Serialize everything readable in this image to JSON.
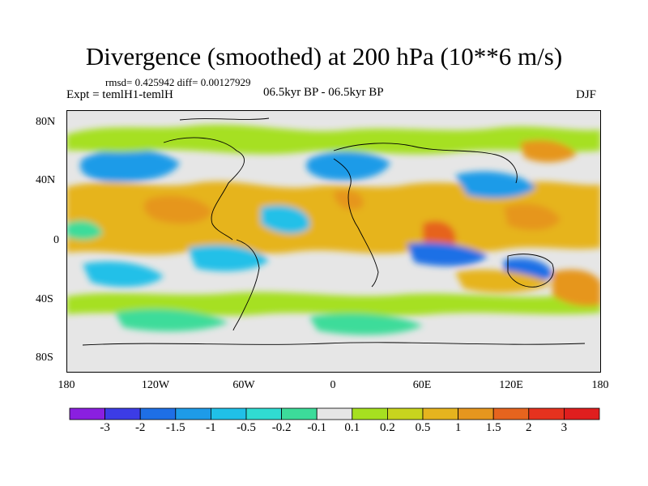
{
  "title": "Divergence (smoothed) at 200 hPa (10**6 m/s)",
  "stats": "rmsd= 0.425942 diff= 0.00127929",
  "experiment": "Expt = temlH1-temlH",
  "period": "06.5kyr BP - 06.5kyr BP",
  "season": "DJF",
  "lat_ticks": [
    "80N",
    "40N",
    "0",
    "40S",
    "80S"
  ],
  "lon_ticks": [
    "180",
    "120W",
    "60W",
    "0",
    "60E",
    "120E",
    "180"
  ],
  "colorbar": {
    "labels": [
      "-3",
      "-2",
      "-1.5",
      "-1",
      "-0.5",
      "-0.2",
      "-0.1",
      "0.1",
      "0.2",
      "0.5",
      "1",
      "1.5",
      "2",
      "3"
    ],
    "colors": [
      "#8a1fe0",
      "#3c3ce6",
      "#1e6fe6",
      "#1e9be8",
      "#20c0e8",
      "#30dcd2",
      "#3cdc9a",
      "#e6e6e6",
      "#a6e020",
      "#c8d41e",
      "#e6b41e",
      "#e6961e",
      "#e6641e",
      "#e6321e",
      "#e01e1e"
    ]
  }
}
